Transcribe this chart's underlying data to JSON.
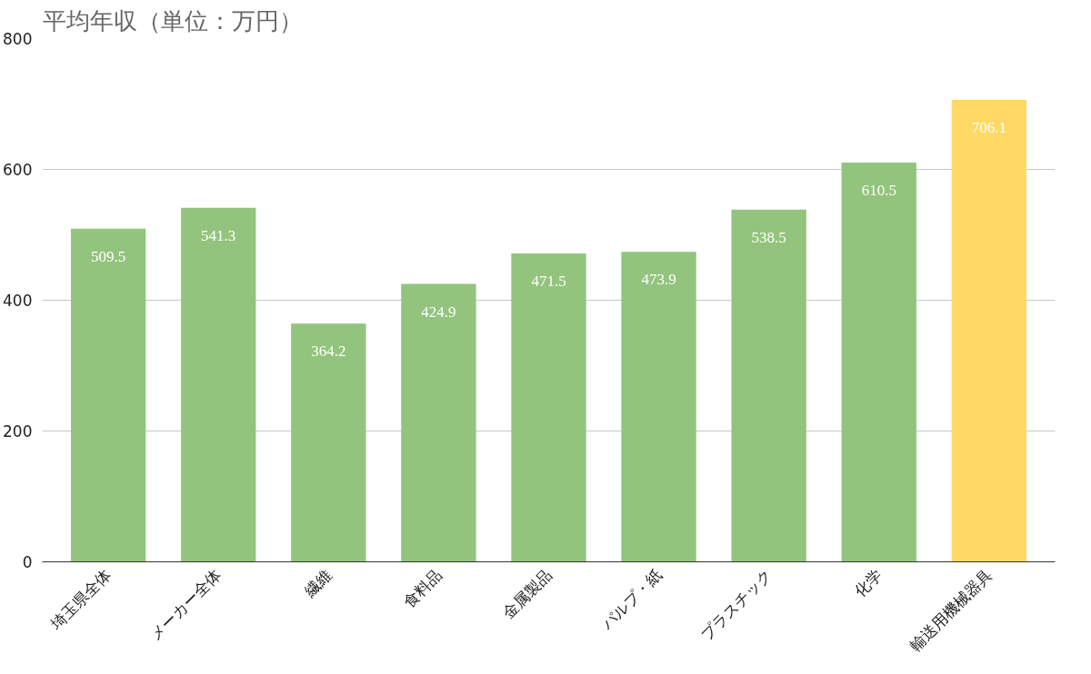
{
  "chart_data": {
    "type": "bar",
    "title": "平均年収（単位：万円）",
    "categories": [
      "埼玉県全体",
      "メーカー全体",
      "繊維",
      "食料品",
      "金属製品",
      "パルプ・紙",
      "プラスチック",
      "化学",
      "輸送用機械器具"
    ],
    "values": [
      509.5,
      541.3,
      364.2,
      424.9,
      471.5,
      473.9,
      538.5,
      610.5,
      706.1
    ],
    "colors": [
      "#93c47d",
      "#93c47d",
      "#93c47d",
      "#93c47d",
      "#93c47d",
      "#93c47d",
      "#93c47d",
      "#93c47d",
      "#ffd966"
    ],
    "ylim": [
      0,
      800
    ],
    "yticks": [
      0,
      200,
      400,
      600,
      800
    ],
    "grid": "y",
    "data_labels": true
  }
}
